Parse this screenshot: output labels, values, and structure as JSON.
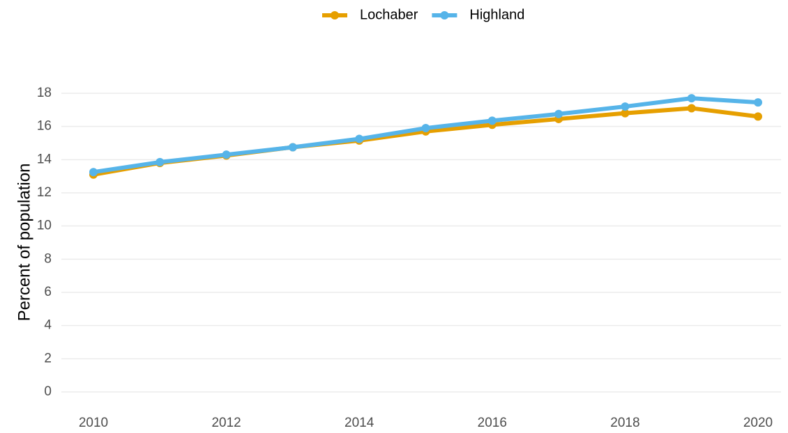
{
  "chart_data": {
    "type": "line",
    "y_label": "Percent of population",
    "x": [
      2010,
      2011,
      2012,
      2013,
      2014,
      2015,
      2016,
      2017,
      2018,
      2019,
      2020
    ],
    "series": [
      {
        "name": "Lochaber",
        "color": "#E69F00",
        "values": [
          13.1,
          13.8,
          14.25,
          14.75,
          15.15,
          15.7,
          16.1,
          16.45,
          16.8,
          17.1,
          16.6
        ]
      },
      {
        "name": "Highland",
        "color": "#56B4E9",
        "values": [
          13.25,
          13.85,
          14.3,
          14.75,
          15.25,
          15.9,
          16.35,
          16.75,
          17.2,
          17.7,
          17.45
        ]
      }
    ],
    "xlim": [
      2010,
      2020
    ],
    "xticks": [
      2010,
      2012,
      2014,
      2016,
      2018,
      2020
    ],
    "ylim": [
      0,
      18
    ],
    "yticks": [
      0,
      2,
      4,
      6,
      8,
      10,
      12,
      14,
      16,
      18
    ],
    "grid": true,
    "legend": "top"
  }
}
